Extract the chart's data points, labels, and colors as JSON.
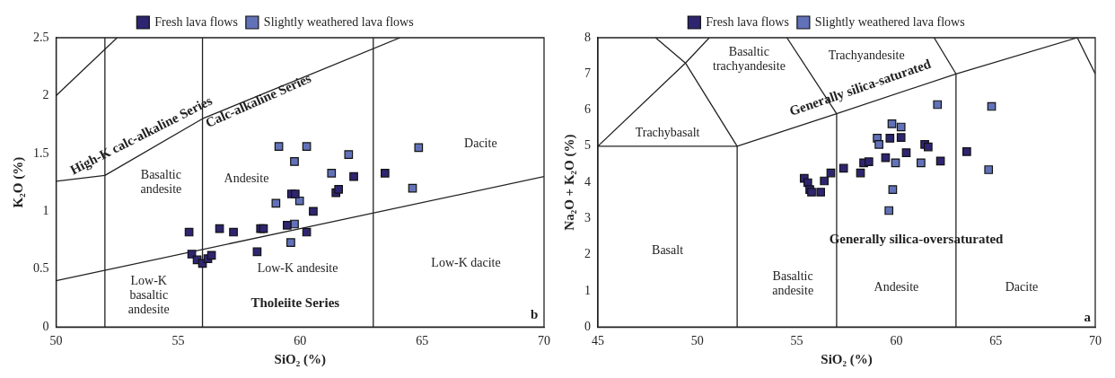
{
  "chart_data": [
    {
      "type": "scatter",
      "xlabel": "SiO₂ (%)",
      "ylabel": "K₂O (%)",
      "xlim": [
        50,
        70
      ],
      "xticks": [
        50,
        55,
        60,
        65,
        70
      ],
      "ylim": [
        0,
        2.5
      ],
      "yticks": [
        0,
        0.5,
        1,
        1.5,
        2,
        2.5
      ],
      "grid": false,
      "legend": "top",
      "series": [
        {
          "name": "Fresh lava flows",
          "color": "#2e2570",
          "marker": "square",
          "x": [
            55.45,
            55.56,
            55.78,
            56.0,
            56.22,
            56.37,
            56.7,
            57.27,
            58.38,
            58.5,
            58.24,
            59.47,
            59.65,
            59.8,
            60.27,
            60.54,
            61.47,
            61.58,
            62.2,
            63.48
          ],
          "values": [
            0.82,
            0.63,
            0.58,
            0.55,
            0.59,
            0.62,
            0.85,
            0.82,
            0.85,
            0.85,
            0.65,
            0.88,
            1.15,
            1.15,
            0.82,
            1.0,
            1.16,
            1.19,
            1.3,
            1.33
          ]
        },
        {
          "name": "Slightly weathered lava flows",
          "color": "#6272b8",
          "marker": "square",
          "x": [
            59.13,
            60.27,
            59.77,
            61.99,
            61.29,
            64.86,
            64.61,
            59.01,
            59.98,
            59.77,
            59.62
          ],
          "values": [
            1.56,
            1.56,
            1.43,
            1.49,
            1.33,
            1.55,
            1.2,
            1.07,
            1.09,
            0.89,
            0.73
          ]
        },
        {
          "type": "line",
          "color": "#222222",
          "marker": "none",
          "x": [
            50,
            52.5
          ],
          "values": [
            2.0,
            2.5
          ]
        },
        {
          "type": "line",
          "color": "#222222",
          "marker": "none",
          "x": [
            50,
            52,
            56,
            64.1
          ],
          "values": [
            1.26,
            1.31,
            1.8,
            2.5
          ]
        },
        {
          "type": "line",
          "color": "#222222",
          "marker": "none",
          "x": [
            50,
            70
          ],
          "values": [
            0.4,
            1.3
          ]
        },
        {
          "type": "line",
          "color": "#222222",
          "marker": "none",
          "x": [
            52,
            52
          ],
          "values": [
            0,
            2.5
          ]
        },
        {
          "type": "line",
          "color": "#222222",
          "marker": "none",
          "x": [
            56,
            56
          ],
          "values": [
            0,
            2.5
          ]
        },
        {
          "type": "line",
          "color": "#222222",
          "marker": "none",
          "x": [
            63,
            63
          ],
          "values": [
            0,
            2.5
          ]
        }
      ],
      "annotations": [
        "High-K calc-alkaline Series",
        "Calc-alkaline Series",
        "Basaltic\nandesite",
        "Andesite",
        "Dacite",
        "Low-K\nbasaltic\nandesite",
        "Low-K andesite",
        "Low-K dacite",
        "Tholeiite Series",
        "b"
      ]
    },
    {
      "type": "scatter",
      "xlabel": "SiO₂ (%)",
      "ylabel": "Na₂O + K₂O (%)",
      "xlim": [
        45,
        70
      ],
      "xticks": [
        45,
        50,
        55,
        60,
        65,
        70
      ],
      "ylim": [
        0,
        8
      ],
      "yticks": [
        0,
        1,
        2,
        3,
        4,
        5,
        6,
        7,
        8
      ],
      "grid": false,
      "legend": "top",
      "series": [
        {
          "name": "Fresh lava flows",
          "color": "#2e2570",
          "marker": "square",
          "x": [
            55.37,
            55.55,
            55.65,
            55.74,
            56.2,
            56.38,
            56.71,
            57.35,
            58.2,
            58.36,
            58.62,
            59.46,
            59.68,
            60.24,
            60.5,
            61.43,
            61.6,
            62.22,
            63.54
          ],
          "values": [
            4.11,
            3.99,
            3.8,
            3.73,
            3.73,
            4.04,
            4.26,
            4.39,
            4.26,
            4.54,
            4.57,
            4.68,
            5.22,
            5.24,
            4.82,
            5.05,
            4.98,
            4.59,
            4.85
          ]
        },
        {
          "name": "Slightly weathered lava flows",
          "color": "#6272b8",
          "marker": "square",
          "x": [
            62.07,
            64.79,
            59.78,
            60.24,
            59.04,
            59.13,
            59.96,
            61.24,
            64.64,
            59.82,
            59.63
          ],
          "values": [
            6.15,
            6.1,
            5.62,
            5.53,
            5.22,
            5.05,
            4.54,
            4.54,
            4.35,
            3.8,
            3.22
          ]
        },
        {
          "type": "line",
          "color": "#222222",
          "marker": "none",
          "x": [
            47.9,
            49.4,
            45,
            52,
            57,
            63,
            69.1,
            70
          ],
          "values": [
            8,
            7.3,
            5,
            5,
            5.9,
            7,
            8,
            7
          ]
        },
        {
          "type": "line",
          "color": "#222222",
          "marker": "none",
          "x": [
            50.6,
            49.4,
            52
          ],
          "values": [
            8,
            7.3,
            5
          ]
        },
        {
          "type": "line",
          "color": "#222222",
          "marker": "none",
          "x": [
            54.5,
            57
          ],
          "values": [
            8,
            5.9
          ]
        },
        {
          "type": "line",
          "color": "#222222",
          "marker": "none",
          "x": [
            61.9,
            63
          ],
          "values": [
            8,
            7
          ]
        },
        {
          "type": "line",
          "color": "#222222",
          "marker": "none",
          "x": [
            52,
            52
          ],
          "values": [
            0,
            5
          ]
        },
        {
          "type": "line",
          "color": "#222222",
          "marker": "none",
          "x": [
            57,
            57
          ],
          "values": [
            0,
            5.9
          ]
        },
        {
          "type": "line",
          "color": "#222222",
          "marker": "none",
          "x": [
            63,
            63
          ],
          "values": [
            0,
            7
          ]
        }
      ],
      "annotations": [
        "Trachybasalt",
        "Basaltic\ntrachyandesite",
        "Trachyandesite",
        "Generally silica-saturated",
        "Basalt",
        "Basaltic\nandesite",
        "Andesite",
        "Dacite",
        "Generally silica-oversaturated",
        "a"
      ]
    }
  ]
}
